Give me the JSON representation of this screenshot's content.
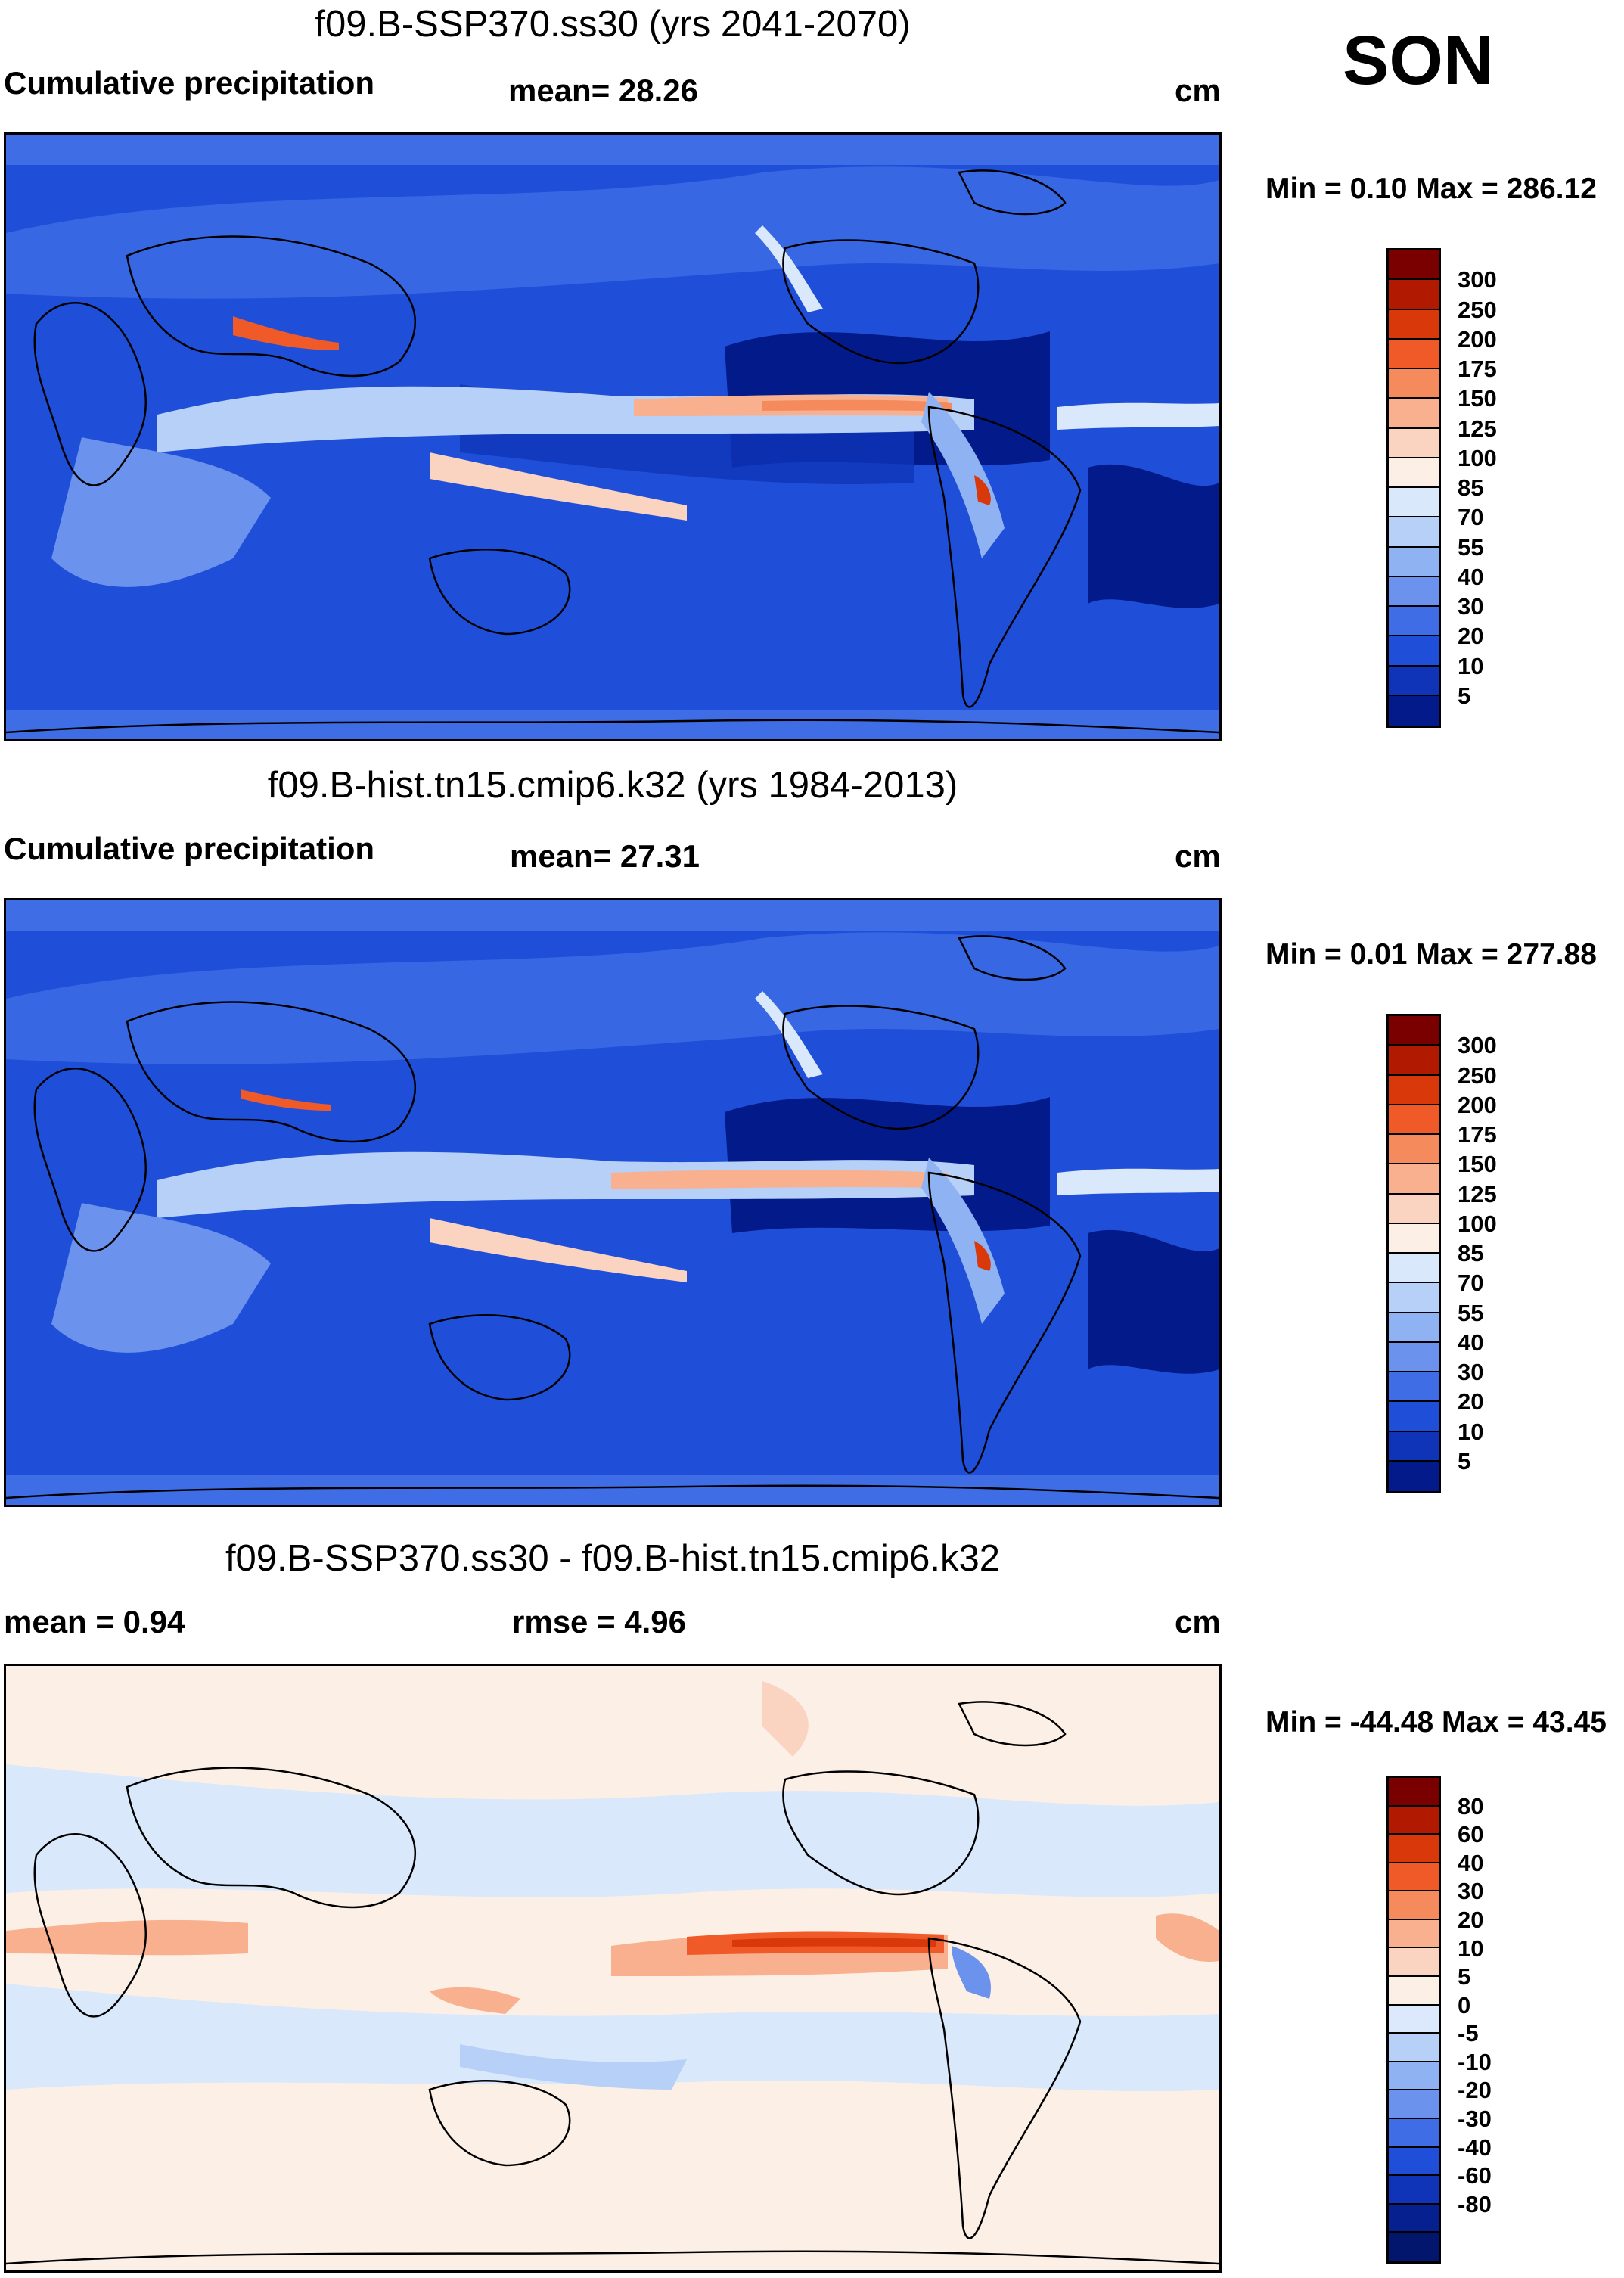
{
  "season": "SON",
  "panels": [
    {
      "title": "f09.B-SSP370.ss30 (yrs 2041-2070)",
      "left_label": "Cumulative precipitation",
      "center_label": "mean=  28.26",
      "units": "cm",
      "minmax": "Min =   0.10 Max = 286.12",
      "colorbar": {
        "colors": [
          "#7a0000",
          "#b11a00",
          "#d9380a",
          "#f05a28",
          "#f58a5c",
          "#f8b08f",
          "#fbd3c1",
          "#fcefe6",
          "#d9e8fb",
          "#b7d0f7",
          "#8fb2f2",
          "#6b92ec",
          "#3f6de6",
          "#1f4fd8",
          "#0f34b8",
          "#031a8a"
        ],
        "ticks": [
          "300",
          "250",
          "200",
          "175",
          "150",
          "125",
          "100",
          "85",
          "70",
          "55",
          "40",
          "30",
          "20",
          "10",
          "5"
        ]
      },
      "map_style": "precip"
    },
    {
      "title": "f09.B-hist.tn15.cmip6.k32 (yrs 1984-2013)",
      "left_label": "Cumulative precipitation",
      "center_label": "mean=  27.31",
      "units": "cm",
      "minmax": "Min =   0.01 Max = 277.88",
      "colorbar": {
        "colors": [
          "#7a0000",
          "#b11a00",
          "#d9380a",
          "#f05a28",
          "#f58a5c",
          "#f8b08f",
          "#fbd3c1",
          "#fcefe6",
          "#d9e8fb",
          "#b7d0f7",
          "#8fb2f2",
          "#6b92ec",
          "#3f6de6",
          "#1f4fd8",
          "#0f34b8",
          "#031a8a"
        ],
        "ticks": [
          "300",
          "250",
          "200",
          "175",
          "150",
          "125",
          "100",
          "85",
          "70",
          "55",
          "40",
          "30",
          "20",
          "10",
          "5"
        ]
      },
      "map_style": "precip"
    },
    {
      "title": "f09.B-SSP370.ss30 - f09.B-hist.tn15.cmip6.k32",
      "left_label": "mean =   0.94",
      "center_label": "rmse =    4.96",
      "units": "cm",
      "minmax": "Min = -44.48 Max =  43.45",
      "colorbar": {
        "colors": [
          "#7a0000",
          "#b11a00",
          "#d9380a",
          "#f05a28",
          "#f58a5c",
          "#f8b08f",
          "#fbd3c1",
          "#fcefe6",
          "#dce8fb",
          "#b7d0f7",
          "#8fb2f2",
          "#6b92ec",
          "#3f6de6",
          "#1f4fd8",
          "#0f34b8",
          "#06208f",
          "#03166e"
        ],
        "ticks": [
          "80",
          "60",
          "40",
          "30",
          "20",
          "10",
          "5",
          "0",
          "-5",
          "-10",
          "-20",
          "-30",
          "-40",
          "-60",
          "-80"
        ]
      },
      "map_style": "diff"
    }
  ]
}
